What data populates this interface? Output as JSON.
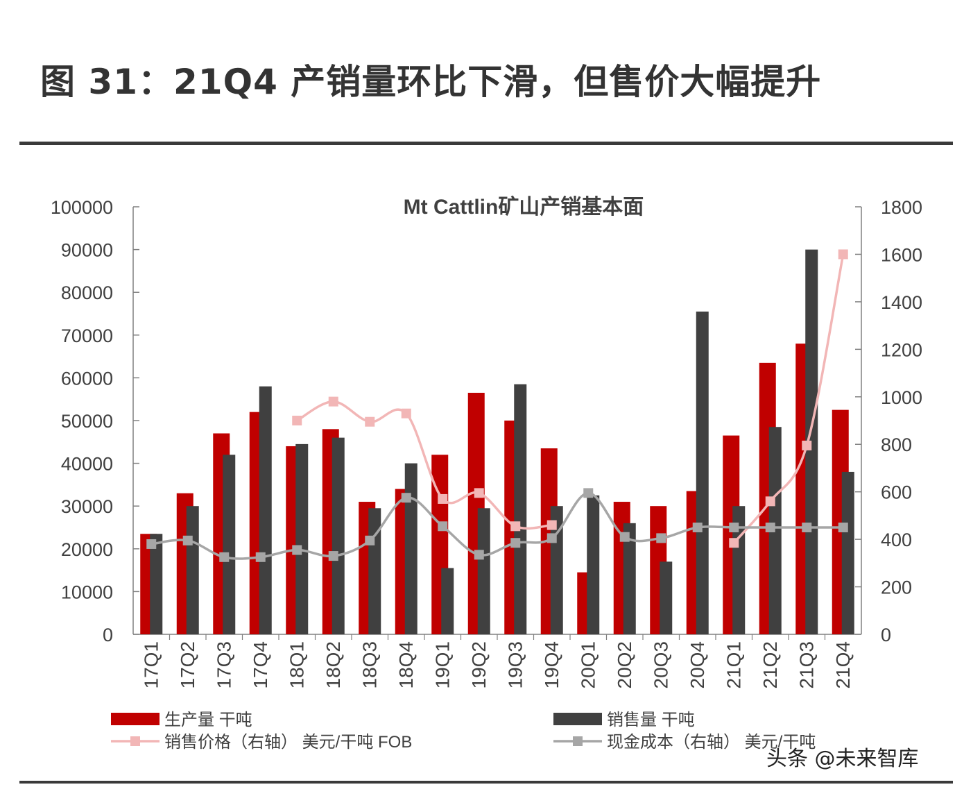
{
  "figure": {
    "title": "图 31：21Q4 产销量环比下滑，但售价大幅提升",
    "watermark": "头条 @未来智库"
  },
  "chart_data": {
    "type": "bar",
    "title": "Mt Cattlin矿山产销基本面",
    "categories": [
      "17Q1",
      "17Q2",
      "17Q3",
      "17Q4",
      "18Q1",
      "18Q2",
      "18Q3",
      "18Q4",
      "19Q1",
      "19Q2",
      "19Q3",
      "19Q4",
      "20Q1",
      "20Q2",
      "20Q3",
      "20Q4",
      "21Q1",
      "21Q2",
      "21Q3",
      "21Q4"
    ],
    "left_axis": {
      "min": 0,
      "max": 100000,
      "step": 10000,
      "ticks": [
        "0",
        "10000",
        "20000",
        "30000",
        "40000",
        "50000",
        "60000",
        "70000",
        "80000",
        "90000",
        "100000"
      ]
    },
    "right_axis": {
      "min": 0,
      "max": 1800,
      "step": 200,
      "ticks": [
        "0",
        "200",
        "400",
        "600",
        "800",
        "1000",
        "1200",
        "1400",
        "1600",
        "1800"
      ]
    },
    "series": [
      {
        "name": "生产量 干吨",
        "kind": "bar",
        "axis": "left",
        "color": "#c00000",
        "values": [
          23500,
          33000,
          47000,
          52000,
          44000,
          48000,
          31000,
          34000,
          42000,
          56500,
          50000,
          43500,
          14500,
          31000,
          30000,
          33500,
          46500,
          63500,
          68000,
          52500
        ]
      },
      {
        "name": "销售量 干吨",
        "kind": "bar",
        "axis": "left",
        "color": "#404040",
        "values": [
          23500,
          30000,
          42000,
          58000,
          44500,
          46000,
          29500,
          40000,
          15500,
          29500,
          58500,
          30000,
          32500,
          26000,
          17000,
          75500,
          30000,
          48500,
          90000,
          38000
        ]
      },
      {
        "name": "销售价格（右轴） 美元/干吨 FOB",
        "kind": "line",
        "axis": "right",
        "color": "#f2b6b6",
        "values": [
          null,
          null,
          null,
          null,
          900,
          980,
          895,
          930,
          570,
          595,
          455,
          460,
          null,
          null,
          null,
          null,
          385,
          560,
          795,
          1600
        ]
      },
      {
        "name": "现金成本（右轴） 美元/干吨",
        "kind": "line",
        "axis": "right",
        "color": "#a6a6a6",
        "values": [
          380,
          395,
          325,
          325,
          355,
          330,
          395,
          575,
          455,
          335,
          385,
          405,
          595,
          410,
          405,
          450,
          450,
          450,
          450,
          450
        ]
      }
    ],
    "legend": {
      "placement": "bottom",
      "items": [
        "生产量 干吨",
        "销售量 干吨",
        "销售价格（右轴） 美元/干吨 FOB",
        "现金成本（右轴） 美元/干吨"
      ]
    }
  }
}
